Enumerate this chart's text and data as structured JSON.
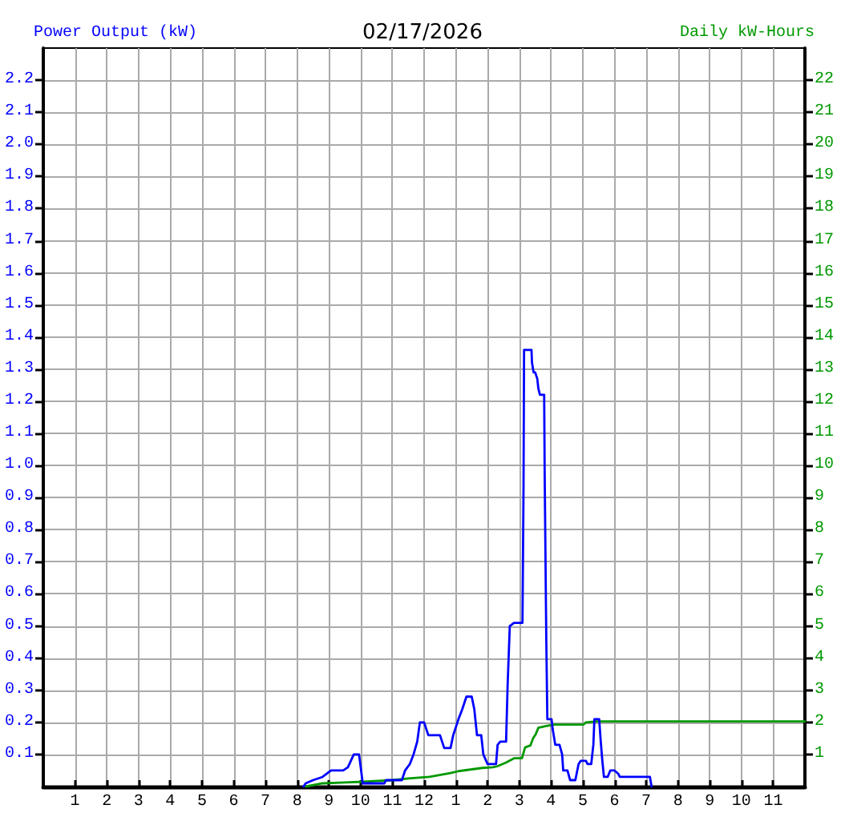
{
  "chart_data": {
    "type": "line",
    "title": "02/17/2026",
    "ylabel": "Power Output (kW)",
    "y2label": "Daily kW-Hours",
    "marker": "none",
    "line_style": "solid",
    "grid": true,
    "xlim": [
      "2026-02-17T00:00",
      "2026-02-18T00:00"
    ],
    "xticks": [
      {
        "value": "2026-02-17T01:00",
        "label": "1"
      },
      {
        "value": "2026-02-17T02:00",
        "label": "2"
      },
      {
        "value": "2026-02-17T03:00",
        "label": "3"
      },
      {
        "value": "2026-02-17T04:00",
        "label": "4"
      },
      {
        "value": "2026-02-17T05:00",
        "label": "5"
      },
      {
        "value": "2026-02-17T06:00",
        "label": "6"
      },
      {
        "value": "2026-02-17T07:00",
        "label": "7"
      },
      {
        "value": "2026-02-17T08:00",
        "label": "8"
      },
      {
        "value": "2026-02-17T09:00",
        "label": "9"
      },
      {
        "value": "2026-02-17T10:00",
        "label": "10"
      },
      {
        "value": "2026-02-17T11:00",
        "label": "11"
      },
      {
        "value": "2026-02-17T12:00",
        "label": "12"
      },
      {
        "value": "2026-02-17T13:00",
        "label": "1"
      },
      {
        "value": "2026-02-17T14:00",
        "label": "2"
      },
      {
        "value": "2026-02-17T15:00",
        "label": "3"
      },
      {
        "value": "2026-02-17T16:00",
        "label": "4"
      },
      {
        "value": "2026-02-17T17:00",
        "label": "5"
      },
      {
        "value": "2026-02-17T18:00",
        "label": "6"
      },
      {
        "value": "2026-02-17T19:00",
        "label": "7"
      },
      {
        "value": "2026-02-17T20:00",
        "label": "8"
      },
      {
        "value": "2026-02-17T21:00",
        "label": "9"
      },
      {
        "value": "2026-02-17T22:00",
        "label": "10"
      },
      {
        "value": "2026-02-17T23:00",
        "label": "11"
      }
    ],
    "ylim": [
      0,
      2.3
    ],
    "yticks": [
      0.1,
      0.2,
      0.3,
      0.4,
      0.5,
      0.6,
      0.7,
      0.8,
      0.9,
      {
        "value": 1,
        "label": "1.0"
      },
      1.1,
      1.2,
      1.3,
      1.4,
      1.5,
      1.6,
      1.7,
      1.8,
      1.9,
      {
        "value": 2,
        "label": "2.0"
      },
      2.1,
      2.2
    ],
    "y2lim": [
      0,
      23
    ],
    "y2ticks": [
      1,
      2,
      3,
      4,
      5,
      6,
      7,
      8,
      9,
      10,
      11,
      12,
      13,
      14,
      15,
      16,
      17,
      18,
      19,
      20,
      21,
      22
    ],
    "series": [
      {
        "color": "#0000ff",
        "x": [
          "2026-02-17T08:12",
          "2026-02-17T08:16",
          "2026-02-17T08:30",
          "2026-02-17T08:48",
          "2026-02-17T09:04",
          "2026-02-17T09:27",
          "2026-02-17T09:36",
          "2026-02-17T09:47",
          "2026-02-17T09:57",
          "2026-02-17T10:04",
          "2026-02-17T10:45",
          "2026-02-17T10:48",
          "2026-02-17T11:18",
          "2026-02-17T11:24",
          "2026-02-17T11:33",
          "2026-02-17T11:40",
          "2026-02-17T11:47",
          "2026-02-17T11:52",
          "2026-02-17T12:00",
          "2026-02-17T12:08",
          "2026-02-17T12:30",
          "2026-02-17T12:38",
          "2026-02-17T12:50",
          "2026-02-17T12:55",
          "2026-02-17T13:05",
          "2026-02-17T13:12",
          "2026-02-17T13:20",
          "2026-02-17T13:30",
          "2026-02-17T13:35",
          "2026-02-17T13:40",
          "2026-02-17T13:48",
          "2026-02-17T13:52",
          "2026-02-17T14:00",
          "2026-02-17T14:16",
          "2026-02-17T14:19",
          "2026-02-17T14:24",
          "2026-02-17T14:35",
          "2026-02-17T14:38",
          "2026-02-17T14:42",
          "2026-02-17T14:50",
          "2026-02-17T15:06",
          "2026-02-17T15:08",
          "2026-02-17T15:09",
          "2026-02-17T15:23",
          "2026-02-17T15:24",
          "2026-02-17T15:27",
          "2026-02-17T15:30",
          "2026-02-17T15:34",
          "2026-02-17T15:36",
          "2026-02-17T15:39",
          "2026-02-17T15:47",
          "2026-02-17T15:48",
          "2026-02-17T15:51",
          "2026-02-17T15:53",
          "2026-02-17T16:01",
          "2026-02-17T16:03",
          "2026-02-17T16:08",
          "2026-02-17T16:16",
          "2026-02-17T16:21",
          "2026-02-17T16:23",
          "2026-02-17T16:31",
          "2026-02-17T16:36",
          "2026-02-17T16:46",
          "2026-02-17T16:52",
          "2026-02-17T16:56",
          "2026-02-17T17:06",
          "2026-02-17T17:09",
          "2026-02-17T17:16",
          "2026-02-17T17:20",
          "2026-02-17T17:22",
          "2026-02-17T17:31",
          "2026-02-17T17:34",
          "2026-02-17T17:37",
          "2026-02-17T17:40",
          "2026-02-17T17:47",
          "2026-02-17T17:52",
          "2026-02-17T18:00",
          "2026-02-17T18:07",
          "2026-02-17T18:10",
          "2026-02-17T19:07",
          "2026-02-17T19:10"
        ],
        "values": [
          0,
          0.01,
          0.02,
          0.03,
          0.05,
          0.05,
          0.06,
          0.1,
          0.1,
          0.01,
          0.01,
          0.02,
          0.02,
          0.05,
          0.07,
          0.1,
          0.14,
          0.2,
          0.2,
          0.16,
          0.16,
          0.12,
          0.12,
          0.16,
          0.21,
          0.24,
          0.28,
          0.28,
          0.24,
          0.16,
          0.16,
          0.1,
          0.07,
          0.07,
          0.13,
          0.14,
          0.14,
          0.32,
          0.5,
          0.51,
          0.51,
          0.94,
          1.36,
          1.36,
          1.32,
          1.29,
          1.29,
          1.27,
          1.24,
          1.22,
          1.22,
          0.97,
          0.46,
          0.21,
          0.21,
          0.18,
          0.13,
          0.13,
          0.1,
          0.05,
          0.05,
          0.02,
          0.02,
          0.07,
          0.08,
          0.08,
          0.07,
          0.07,
          0.13,
          0.21,
          0.21,
          0.14,
          0.08,
          0.03,
          0.03,
          0.05,
          0.05,
          0.04,
          0.03,
          0.03,
          0
        ]
      },
      {
        "color": "#009900",
        "axis": "y2",
        "x": [
          "2026-02-17T08:16",
          "2026-02-17T08:48",
          "2026-02-17T09:30",
          "2026-02-17T10:04",
          "2026-02-17T11:00",
          "2026-02-17T11:30",
          "2026-02-17T12:10",
          "2026-02-17T12:50",
          "2026-02-17T13:05",
          "2026-02-17T13:50",
          "2026-02-17T14:10",
          "2026-02-17T14:18",
          "2026-02-17T14:35",
          "2026-02-17T14:50",
          "2026-02-17T15:05",
          "2026-02-17T15:11",
          "2026-02-17T15:21",
          "2026-02-17T15:26",
          "2026-02-17T15:31",
          "2026-02-17T15:36",
          "2026-02-17T15:49",
          "2026-02-17T16:06",
          "2026-02-17T17:01",
          "2026-02-17T17:06",
          "2026-02-17T17:26",
          "2026-02-18T00:00"
        ],
        "values": [
          0,
          0.1,
          0.13,
          0.15,
          0.2,
          0.25,
          0.3,
          0.42,
          0.48,
          0.58,
          0.6,
          0.63,
          0.75,
          0.88,
          0.88,
          1.22,
          1.28,
          1.5,
          1.63,
          1.83,
          1.88,
          1.93,
          1.93,
          2.0,
          2.03,
          2.03
        ]
      }
    ]
  }
}
